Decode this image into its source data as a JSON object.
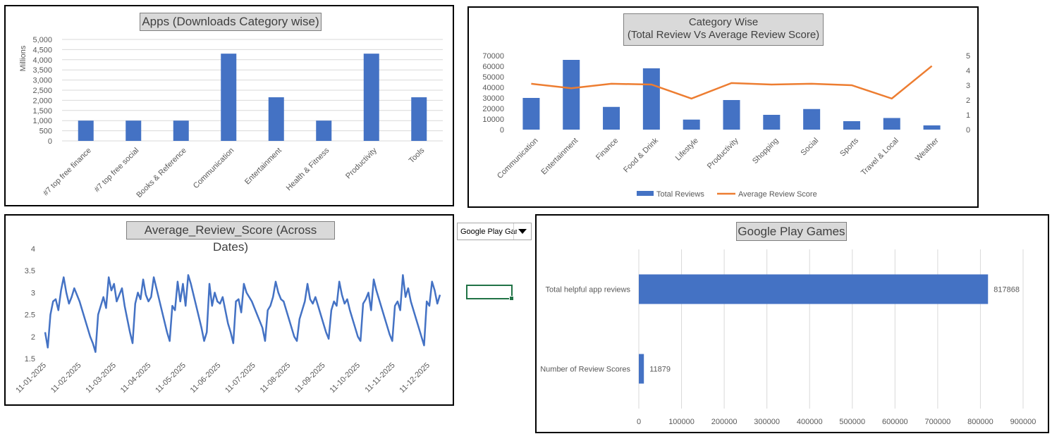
{
  "colors": {
    "bar": "#4472c4",
    "line_score": "#ed7d31",
    "line_date": "#4472c4",
    "grid": "#d9d9d9"
  },
  "chart_data": [
    {
      "id": "downloads",
      "type": "bar",
      "title": "Apps (Downloads Category wise)",
      "ylabel": "Millions",
      "ylim": [
        0,
        5000
      ],
      "yticks": [
        "0",
        "500",
        "1,000",
        "1,500",
        "2,000",
        "2,500",
        "3,000",
        "3,500",
        "4,000",
        "4,500",
        "5,000"
      ],
      "categories": [
        "#7 top free finance",
        "#7 top free social",
        "Books & Reference",
        "Communication",
        "Entertainment",
        "Health & Fitness",
        "Productivity",
        "Tools"
      ],
      "values": [
        1000,
        1000,
        1000,
        4300,
        2150,
        1000,
        4300,
        2150
      ]
    },
    {
      "id": "category",
      "type": "bar+line",
      "title_lines": [
        "Category Wise",
        "(Total Review Vs Average Review Score)"
      ],
      "categories": [
        "Communication",
        "Entertainment",
        "Finance",
        "Food & Drink",
        "Lifestyle",
        "Productivity",
        "Shopping",
        "Social",
        "Sports",
        "Travel & Local",
        "Weather"
      ],
      "ylim": [
        0,
        70000
      ],
      "yticks": [
        "0",
        "10000",
        "20000",
        "30000",
        "40000",
        "50000",
        "60000",
        "70000"
      ],
      "y2lim": [
        0,
        5
      ],
      "y2ticks": [
        "0",
        "1",
        "2",
        "3",
        "4",
        "5"
      ],
      "series": [
        {
          "name": "Total Reviews",
          "kind": "bar",
          "values": [
            30000,
            66000,
            21500,
            58000,
            9500,
            28000,
            14000,
            19500,
            8000,
            11000,
            4000
          ]
        },
        {
          "name": "Average Review Score",
          "kind": "line",
          "values": [
            3.1,
            2.8,
            3.1,
            3.05,
            2.1,
            3.15,
            3.05,
            3.1,
            3.0,
            2.1,
            4.3
          ]
        }
      ],
      "legend": "bottom"
    },
    {
      "id": "dates",
      "type": "line",
      "title": "Average_Review_Score (Across Dates)",
      "ylim": [
        1.5,
        4
      ],
      "yticks": [
        "1.5",
        "2",
        "2.5",
        "3",
        "3.5",
        "4"
      ],
      "xticks": [
        "11-01-2025",
        "11-02-2025",
        "11-03-2025",
        "11-04-2025",
        "11-05-2025",
        "11-06-2025",
        "11-07-2025",
        "11-08-2025",
        "11-09-2025",
        "11-10-2025",
        "11-11-2025",
        "11-12-2025"
      ],
      "values": [
        2.1,
        1.75,
        2.5,
        2.8,
        2.85,
        2.6,
        3.05,
        3.35,
        3.0,
        2.75,
        2.9,
        3.1,
        2.95,
        2.8,
        2.6,
        2.4,
        2.2,
        2.0,
        1.85,
        1.65,
        2.5,
        2.7,
        2.9,
        2.65,
        3.35,
        3.05,
        3.2,
        2.8,
        2.95,
        3.1,
        2.7,
        2.4,
        2.1,
        1.85,
        2.75,
        3.0,
        2.85,
        3.3,
        2.95,
        2.8,
        2.9,
        3.35,
        3.1,
        2.85,
        2.6,
        2.35,
        2.1,
        1.9,
        2.7,
        2.6,
        3.25,
        2.8,
        3.2,
        2.7,
        3.4,
        3.2,
        2.95,
        2.7,
        2.45,
        2.2,
        1.9,
        2.1,
        3.2,
        2.7,
        3.0,
        2.8,
        2.75,
        2.9,
        2.6,
        2.3,
        2.1,
        1.85,
        2.8,
        2.85,
        2.55,
        3.2,
        3.0,
        2.9,
        2.8,
        2.65,
        2.5,
        2.35,
        2.2,
        1.9,
        2.6,
        2.7,
        2.9,
        3.25,
        3.0,
        2.85,
        2.8,
        2.6,
        2.4,
        2.2,
        2.0,
        1.9,
        2.4,
        2.6,
        2.8,
        3.2,
        2.85,
        2.75,
        2.9,
        2.7,
        2.5,
        2.3,
        2.1,
        1.95,
        2.6,
        2.8,
        2.7,
        3.25,
        2.95,
        2.75,
        2.85,
        2.6,
        2.4,
        2.2,
        2.0,
        1.9,
        2.75,
        2.85,
        3.0,
        2.6,
        3.3,
        3.05,
        2.85,
        2.65,
        2.45,
        2.25,
        2.05,
        1.9,
        2.7,
        2.8,
        2.6,
        3.4,
        2.9,
        3.1,
        2.8,
        2.6,
        2.4,
        2.2,
        2.0,
        1.8,
        2.8,
        2.7,
        3.25,
        3.05,
        2.75,
        2.95
      ]
    },
    {
      "id": "games",
      "type": "bar-horizontal",
      "title": "Google Play Games",
      "categories": [
        "Total helpful app reviews",
        "Number of Review Scores"
      ],
      "values": [
        817868,
        11879
      ],
      "data_labels": [
        "817868",
        "11879"
      ],
      "xlim": [
        0,
        900000
      ],
      "xticks": [
        "0",
        "100000",
        "200000",
        "300000",
        "400000",
        "500000",
        "600000",
        "700000",
        "800000",
        "900000"
      ]
    }
  ],
  "dropdown": {
    "value": "Google Play Games"
  }
}
